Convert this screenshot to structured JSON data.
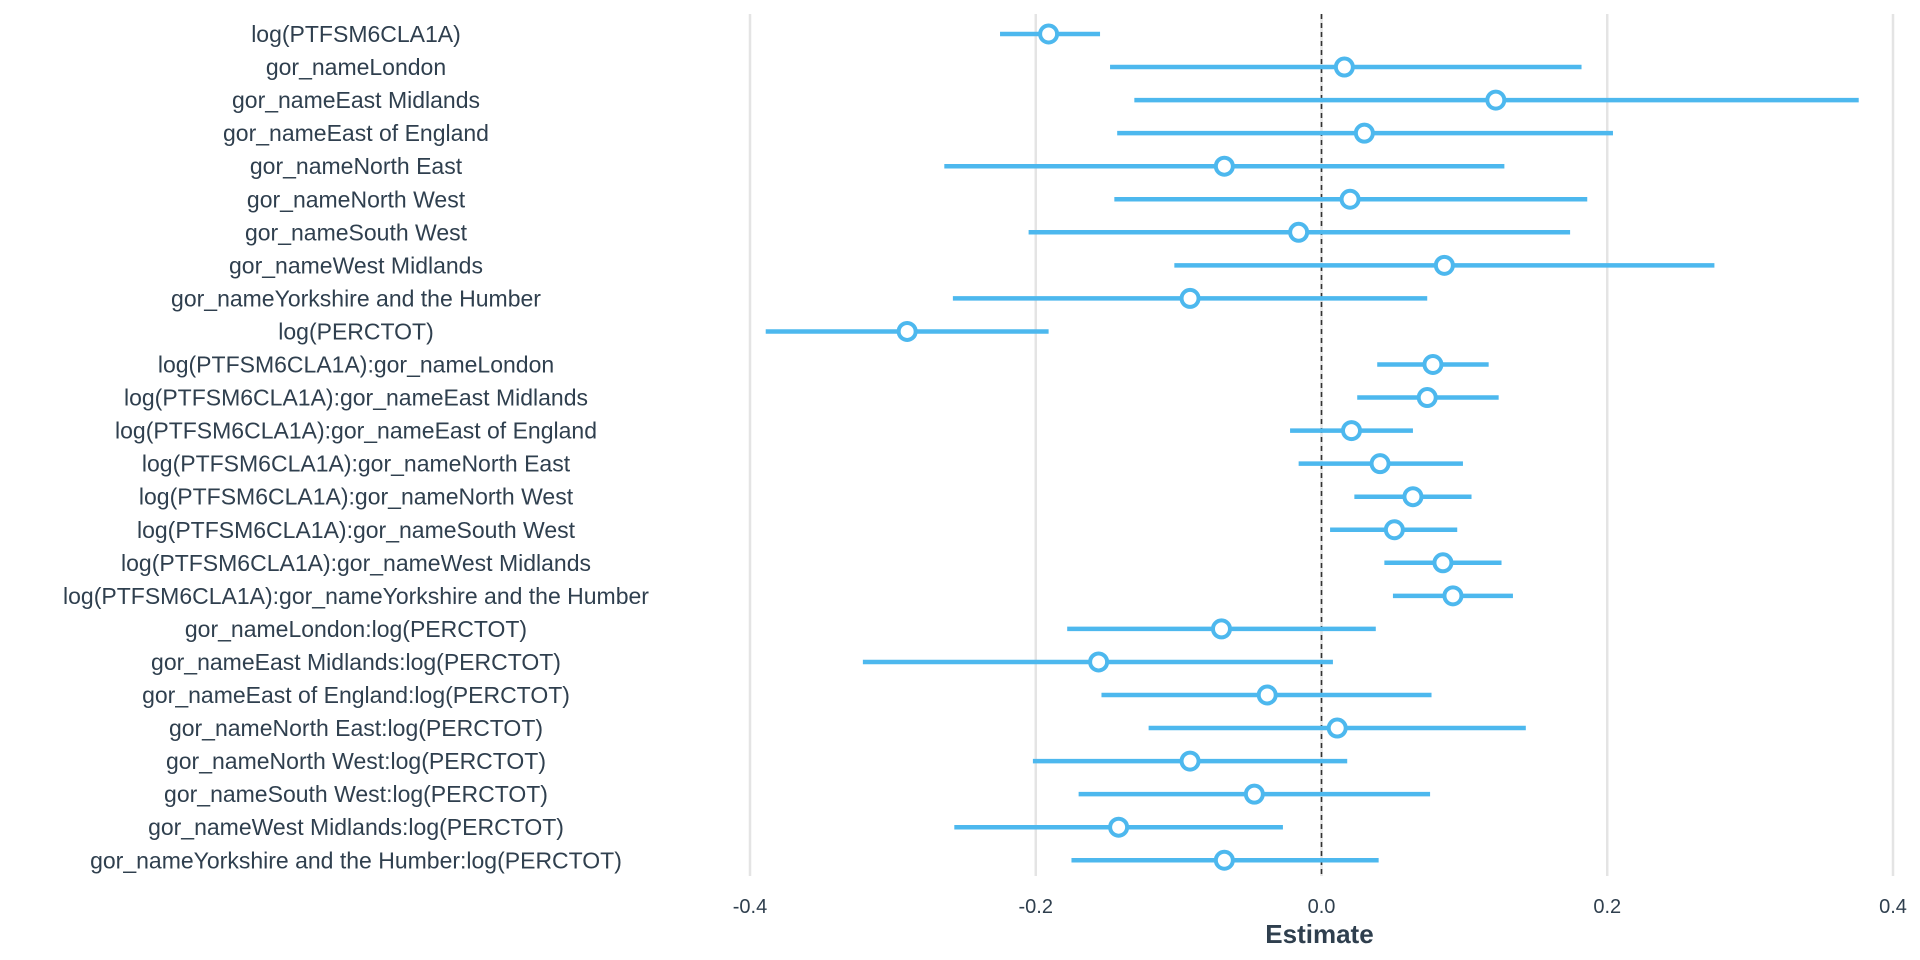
{
  "chart_data": {
    "type": "forest",
    "xlabel": "Estimate",
    "xlim": [
      -0.4,
      0.4
    ],
    "xticks": [
      -0.4,
      -0.2,
      0.0,
      0.2,
      0.4
    ],
    "xtick_labels": [
      "-0.4",
      "-0.2",
      "0.0",
      "0.2",
      "0.4"
    ],
    "reference_line": 0,
    "grid": "vertical-major",
    "colors": {
      "series": "#4db8ee",
      "marker_fill": "#ffffff",
      "grid": "#e4e4e4",
      "text": "#2f3f4e",
      "reference": "#333333"
    },
    "terms": [
      {
        "label": "log(PTFSM6CLA1A)",
        "estimate": -0.191,
        "lower": -0.225,
        "upper": -0.155
      },
      {
        "label": "gor_nameLondon",
        "estimate": 0.016,
        "lower": -0.148,
        "upper": 0.182
      },
      {
        "label": "gor_nameEast Midlands",
        "estimate": 0.122,
        "lower": -0.131,
        "upper": 0.376
      },
      {
        "label": "gor_nameEast of England",
        "estimate": 0.03,
        "lower": -0.143,
        "upper": 0.204
      },
      {
        "label": "gor_nameNorth East",
        "estimate": -0.068,
        "lower": -0.264,
        "upper": 0.128
      },
      {
        "label": "gor_nameNorth West",
        "estimate": 0.02,
        "lower": -0.145,
        "upper": 0.186
      },
      {
        "label": "gor_nameSouth West",
        "estimate": -0.016,
        "lower": -0.205,
        "upper": 0.174
      },
      {
        "label": "gor_nameWest Midlands",
        "estimate": 0.086,
        "lower": -0.103,
        "upper": 0.275
      },
      {
        "label": "gor_nameYorkshire and the Humber",
        "estimate": -0.092,
        "lower": -0.258,
        "upper": 0.074
      },
      {
        "label": "log(PERCTOT)",
        "estimate": -0.29,
        "lower": -0.389,
        "upper": -0.191
      },
      {
        "label": "log(PTFSM6CLA1A):gor_nameLondon",
        "estimate": 0.078,
        "lower": 0.039,
        "upper": 0.117
      },
      {
        "label": "log(PTFSM6CLA1A):gor_nameEast Midlands",
        "estimate": 0.074,
        "lower": 0.025,
        "upper": 0.124
      },
      {
        "label": "log(PTFSM6CLA1A):gor_nameEast of England",
        "estimate": 0.021,
        "lower": -0.022,
        "upper": 0.064
      },
      {
        "label": "log(PTFSM6CLA1A):gor_nameNorth East",
        "estimate": 0.041,
        "lower": -0.016,
        "upper": 0.099
      },
      {
        "label": "log(PTFSM6CLA1A):gor_nameNorth West",
        "estimate": 0.064,
        "lower": 0.023,
        "upper": 0.105
      },
      {
        "label": "log(PTFSM6CLA1A):gor_nameSouth West",
        "estimate": 0.051,
        "lower": 0.006,
        "upper": 0.095
      },
      {
        "label": "log(PTFSM6CLA1A):gor_nameWest Midlands",
        "estimate": 0.085,
        "lower": 0.044,
        "upper": 0.126
      },
      {
        "label": "log(PTFSM6CLA1A):gor_nameYorkshire and the Humber",
        "estimate": 0.092,
        "lower": 0.05,
        "upper": 0.134
      },
      {
        "label": "gor_nameLondon:log(PERCTOT)",
        "estimate": -0.07,
        "lower": -0.178,
        "upper": 0.038
      },
      {
        "label": "gor_nameEast Midlands:log(PERCTOT)",
        "estimate": -0.156,
        "lower": -0.321,
        "upper": 0.008
      },
      {
        "label": "gor_nameEast of England:log(PERCTOT)",
        "estimate": -0.038,
        "lower": -0.154,
        "upper": 0.077
      },
      {
        "label": "gor_nameNorth East:log(PERCTOT)",
        "estimate": 0.011,
        "lower": -0.121,
        "upper": 0.143
      },
      {
        "label": "gor_nameNorth West:log(PERCTOT)",
        "estimate": -0.092,
        "lower": -0.202,
        "upper": 0.018
      },
      {
        "label": "gor_nameSouth West:log(PERCTOT)",
        "estimate": -0.047,
        "lower": -0.17,
        "upper": 0.076
      },
      {
        "label": "gor_nameWest Midlands:log(PERCTOT)",
        "estimate": -0.142,
        "lower": -0.257,
        "upper": -0.027
      },
      {
        "label": "gor_nameYorkshire and the Humber:log(PERCTOT)",
        "estimate": -0.068,
        "lower": -0.175,
        "upper": 0.04
      }
    ]
  }
}
